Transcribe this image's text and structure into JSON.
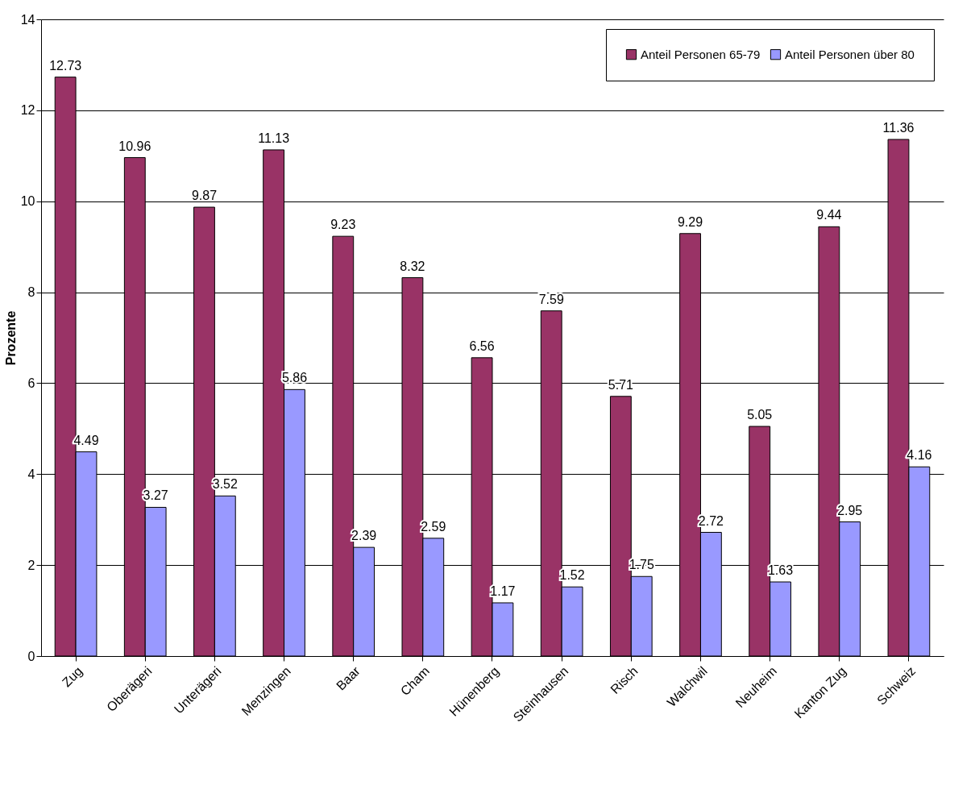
{
  "chart_data": {
    "type": "bar",
    "ylabel": "Prozente",
    "categories": [
      "Zug",
      "Oberägeri",
      "Unterägeri",
      "Menzingen",
      "Baar",
      "Cham",
      "Hünenberg",
      "Steinhausen",
      "Risch",
      "Walchwil",
      "Neuheim",
      "Kanton Zug",
      "Schweiz"
    ],
    "series": [
      {
        "name": "Anteil Personen 65-79",
        "color": "#993366",
        "values": [
          12.73,
          10.96,
          9.87,
          11.13,
          9.23,
          8.32,
          6.56,
          7.59,
          5.71,
          9.29,
          5.05,
          9.44,
          11.36
        ]
      },
      {
        "name": "Anteil Personen über 80",
        "color": "#9999ff",
        "values": [
          4.49,
          3.27,
          3.52,
          5.86,
          2.39,
          2.59,
          1.17,
          1.52,
          1.75,
          2.72,
          1.63,
          2.95,
          4.16
        ]
      }
    ],
    "ylim": [
      0,
      14
    ],
    "yticks": [
      0,
      2,
      4,
      6,
      8,
      10,
      12,
      14
    ],
    "grid": "y",
    "legend": "top right",
    "data_labels": true
  }
}
